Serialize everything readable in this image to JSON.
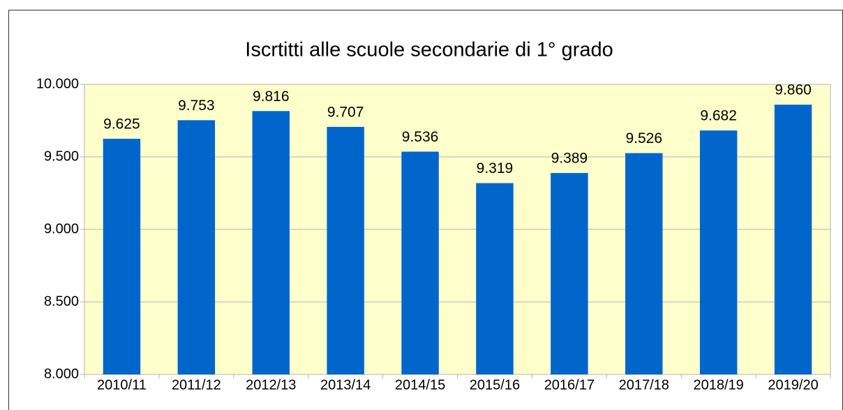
{
  "chart_data": {
    "type": "bar",
    "title": "Iscrtitti alle scuole secondarie di 1° grado",
    "categories": [
      "2010/11",
      "2011/12",
      "2012/13",
      "2013/14",
      "2014/15",
      "2015/16",
      "2016/17",
      "2017/18",
      "2018/19",
      "2019/20"
    ],
    "values": [
      9625,
      9753,
      9816,
      9707,
      9536,
      9319,
      9389,
      9526,
      9682,
      9860
    ],
    "value_labels": [
      "9.625",
      "9.753",
      "9.816",
      "9.707",
      "9.536",
      "9.319",
      "9.389",
      "9.526",
      "9.682",
      "9.860"
    ],
    "color": "#0066cc",
    "ylim": [
      8000,
      10000
    ],
    "yticks": [
      {
        "value": 8000,
        "label": "8.000"
      },
      {
        "value": 8500,
        "label": "8.500"
      },
      {
        "value": 9000,
        "label": "9.000"
      },
      {
        "value": 9500,
        "label": "9.500"
      },
      {
        "value": 10000,
        "label": "10.000"
      }
    ],
    "grid": true
  }
}
